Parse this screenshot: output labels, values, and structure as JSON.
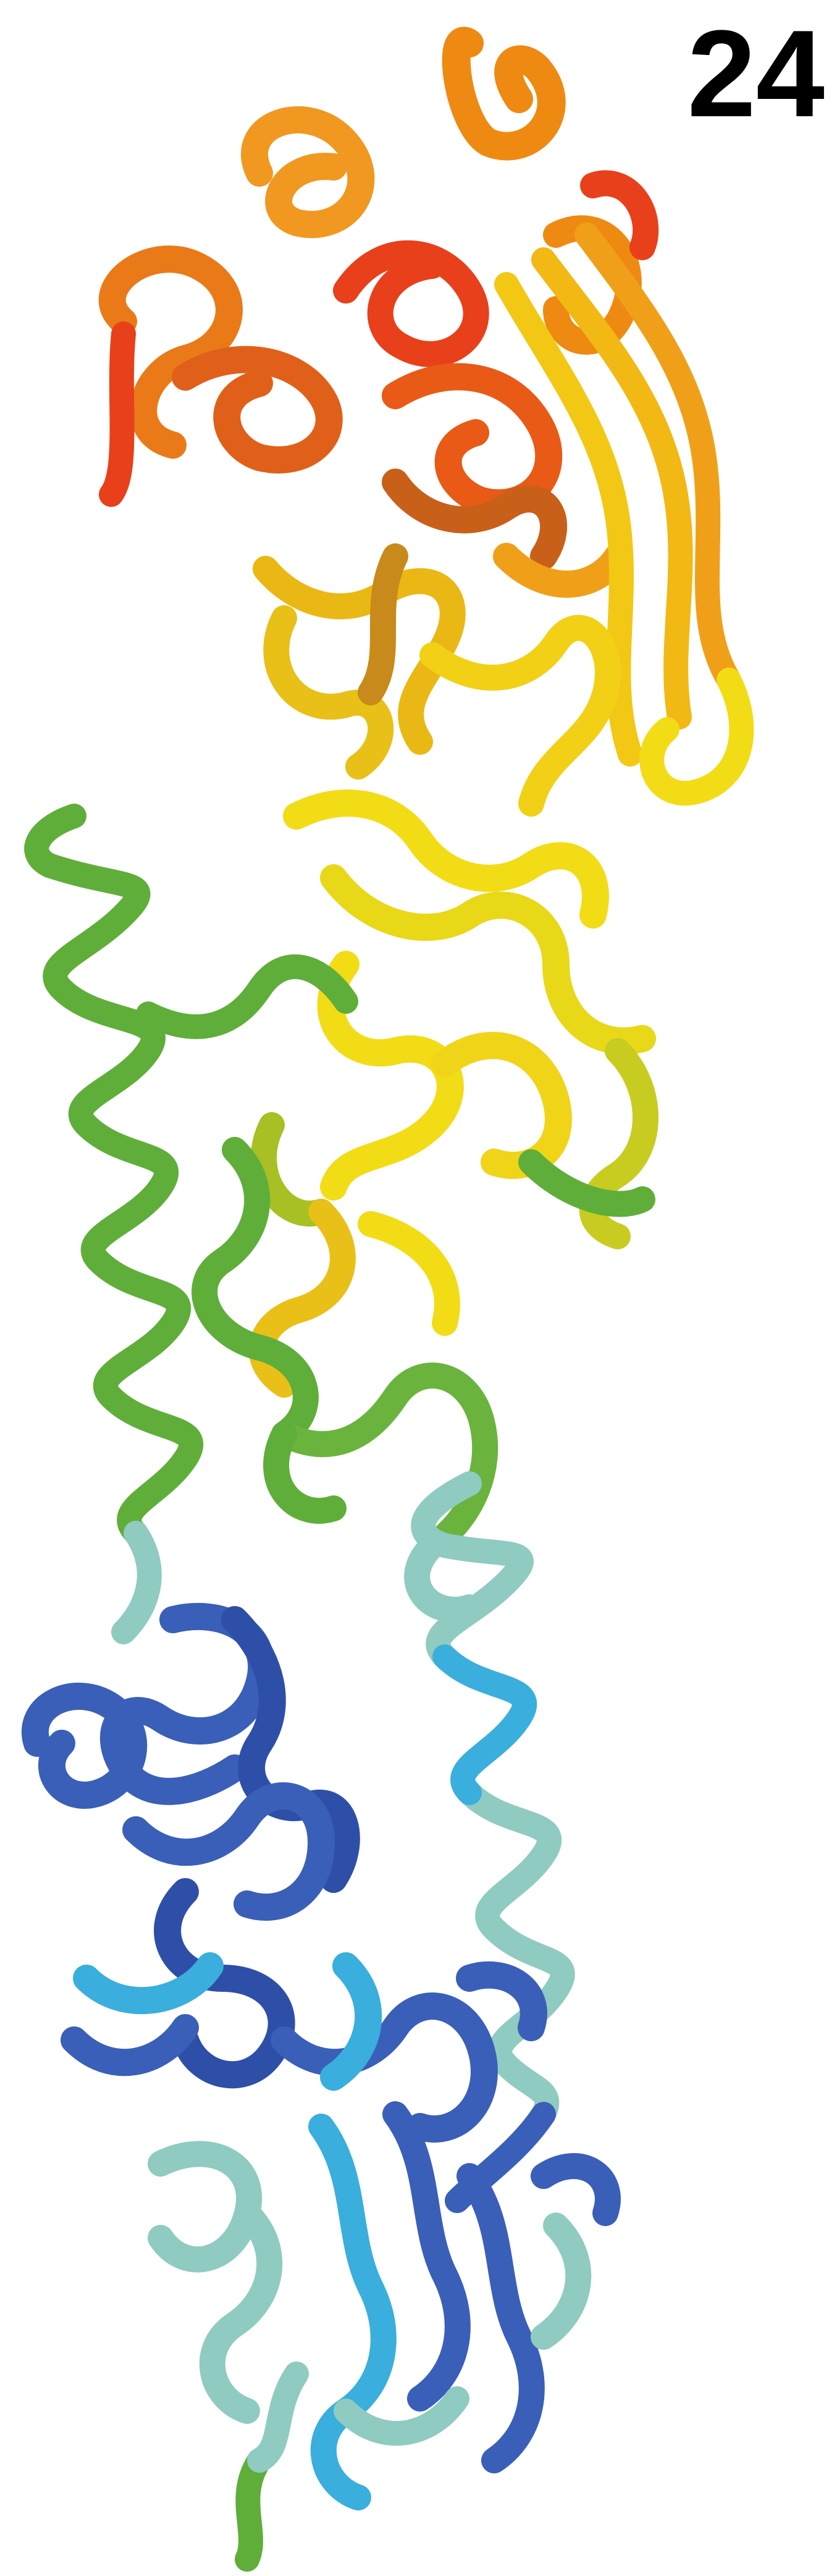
{
  "panel_label": "24",
  "image": {
    "subject": "protein-ribbon",
    "colors": {
      "background": "#ffffff",
      "label": "#000000",
      "red": "#e8401a",
      "orange": "#ee8a12",
      "yellow": "#f2dc16",
      "green": "#5fae3a",
      "teal": "#8fcbc0",
      "cyan": "#3aaedc",
      "blue": "#3a5fb8"
    }
  }
}
